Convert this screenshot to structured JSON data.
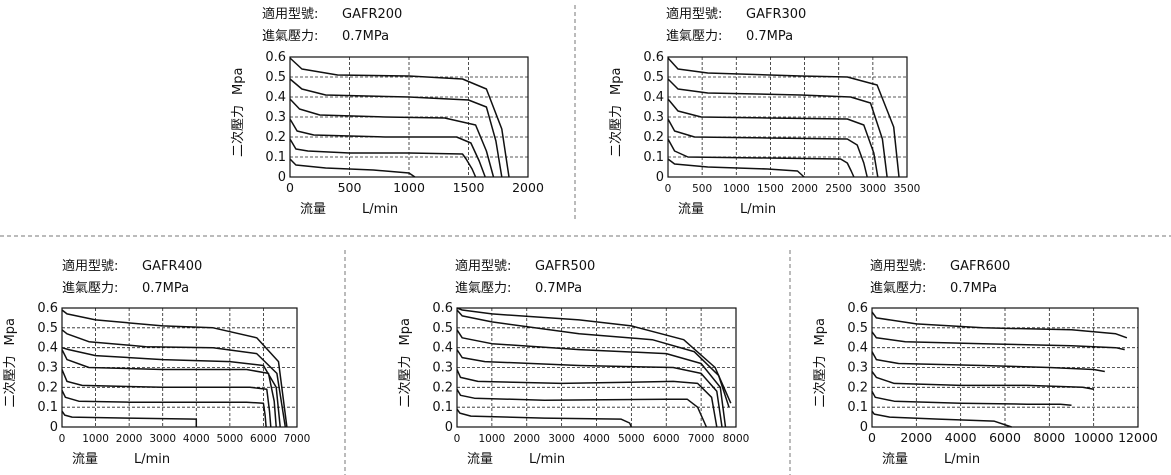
{
  "chart_data": [
    {
      "type": "line",
      "model_label": "適用型號:",
      "model": "GAFR200",
      "pressure_label": "進氣壓力:",
      "pressure": "0.7MPa",
      "ylabel_cn": "二次壓力",
      "ylabel_unit": "Mpa",
      "xlabel_cn": "流量",
      "xlabel_unit": "L/min",
      "xlim": [
        0,
        2000
      ],
      "ylim": [
        0,
        0.6
      ],
      "x_ticks": [
        "0",
        "500",
        "1000",
        "1500",
        "2000"
      ],
      "y_ticks": [
        "0",
        "0.1",
        "0.2",
        "0.3",
        "0.4",
        "0.5",
        "0.6"
      ],
      "series": [
        {
          "x": [
            0,
            50,
            300,
            700,
            1000,
            1050
          ],
          "y": [
            0.09,
            0.06,
            0.045,
            0.035,
            0.02,
            0.0
          ]
        },
        {
          "x": [
            0,
            50,
            150,
            500,
            1000,
            1450,
            1480,
            1530,
            1560
          ],
          "y": [
            0.19,
            0.14,
            0.13,
            0.12,
            0.12,
            0.115,
            0.09,
            0.04,
            0.0
          ]
        },
        {
          "x": [
            0,
            60,
            200,
            800,
            1400,
            1520,
            1590,
            1640
          ],
          "y": [
            0.29,
            0.23,
            0.21,
            0.2,
            0.2,
            0.17,
            0.08,
            0.0
          ]
        },
        {
          "x": [
            0,
            80,
            250,
            800,
            1300,
            1560,
            1650,
            1710
          ],
          "y": [
            0.39,
            0.34,
            0.31,
            0.3,
            0.295,
            0.26,
            0.13,
            0.0
          ]
        },
        {
          "x": [
            0,
            100,
            300,
            1000,
            1500,
            1650,
            1730,
            1780
          ],
          "y": [
            0.49,
            0.44,
            0.41,
            0.4,
            0.385,
            0.35,
            0.18,
            0.0
          ]
        },
        {
          "x": [
            0,
            100,
            400,
            1000,
            1450,
            1650,
            1780,
            1840
          ],
          "y": [
            0.595,
            0.54,
            0.51,
            0.505,
            0.49,
            0.44,
            0.24,
            0.0
          ]
        }
      ]
    },
    {
      "type": "line",
      "model_label": "適用型號:",
      "model": "GAFR300",
      "pressure_label": "進氣壓力:",
      "pressure": "0.7MPa",
      "ylabel_cn": "二次壓力",
      "ylabel_unit": "Mpa",
      "xlabel_cn": "流量",
      "xlabel_unit": "L/min",
      "xlim": [
        0,
        3600
      ],
      "ylim": [
        0,
        0.6
      ],
      "x_ticks": [
        "0",
        "500",
        "1000",
        "1500",
        "2000",
        "2500",
        "3000",
        "3500"
      ],
      "y_ticks": [
        "0",
        "0.1",
        "0.2",
        "0.3",
        "0.4",
        "0.5",
        "0.6"
      ],
      "series": [
        {
          "x": [
            0,
            100,
            600,
            1500,
            1950,
            2050
          ],
          "y": [
            0.09,
            0.065,
            0.05,
            0.04,
            0.03,
            0.0
          ]
        },
        {
          "x": [
            0,
            100,
            300,
            1500,
            2600,
            2700,
            2760,
            2800
          ],
          "y": [
            0.19,
            0.13,
            0.1,
            0.095,
            0.09,
            0.07,
            0.03,
            0.0
          ]
        },
        {
          "x": [
            0,
            100,
            400,
            1500,
            2700,
            2850,
            2950,
            3000
          ],
          "y": [
            0.29,
            0.23,
            0.2,
            0.195,
            0.19,
            0.16,
            0.07,
            0.0
          ]
        },
        {
          "x": [
            0,
            150,
            500,
            1500,
            2700,
            2950,
            3100,
            3160
          ],
          "y": [
            0.39,
            0.33,
            0.3,
            0.295,
            0.29,
            0.26,
            0.12,
            0.0
          ]
        },
        {
          "x": [
            0,
            150,
            600,
            2000,
            2750,
            3050,
            3230,
            3300
          ],
          "y": [
            0.49,
            0.44,
            0.42,
            0.41,
            0.4,
            0.37,
            0.19,
            0.0
          ]
        },
        {
          "x": [
            0,
            150,
            600,
            2000,
            2700,
            3150,
            3400,
            3480
          ],
          "y": [
            0.595,
            0.54,
            0.52,
            0.505,
            0.5,
            0.46,
            0.25,
            0.0
          ]
        }
      ]
    },
    {
      "type": "line",
      "model_label": "適用型號:",
      "model": "GAFR400",
      "pressure_label": "進氣壓力:",
      "pressure": "0.7MPa",
      "ylabel_cn": "二次壓力",
      "ylabel_unit": "Mpa",
      "xlabel_cn": "流量",
      "xlabel_unit": "L/min",
      "xlim": [
        0,
        7000
      ],
      "ylim": [
        0,
        0.6
      ],
      "x_ticks": [
        "0",
        "1000",
        "2000",
        "3000",
        "4000",
        "5000",
        "6000",
        "7000"
      ],
      "y_ticks": [
        "0",
        "0.1",
        "0.2",
        "0.3",
        "0.4",
        "0.5",
        "0.6"
      ],
      "series": [
        {
          "x": [
            0,
            80,
            300,
            2000,
            4000,
            4000
          ],
          "y": [
            0.08,
            0.06,
            0.05,
            0.045,
            0.04,
            0.0
          ]
        },
        {
          "x": [
            0,
            100,
            500,
            2000,
            5500,
            6000,
            6050,
            6080
          ],
          "y": [
            0.185,
            0.15,
            0.13,
            0.125,
            0.125,
            0.12,
            0.06,
            0.0
          ]
        },
        {
          "x": [
            0,
            150,
            600,
            3000,
            5600,
            6100,
            6180,
            6220
          ],
          "y": [
            0.29,
            0.23,
            0.21,
            0.2,
            0.2,
            0.19,
            0.08,
            0.0
          ]
        },
        {
          "x": [
            0,
            150,
            800,
            3000,
            5500,
            6150,
            6320,
            6380
          ],
          "y": [
            0.39,
            0.34,
            0.3,
            0.29,
            0.29,
            0.27,
            0.13,
            0.0
          ]
        },
        {
          "x": [
            0,
            200,
            1000,
            3000,
            5000,
            6000,
            6380,
            6500
          ],
          "y": [
            0.4,
            0.39,
            0.36,
            0.34,
            0.33,
            0.31,
            0.2,
            0.0
          ]
        },
        {
          "x": [
            0,
            150,
            800,
            2500,
            4500,
            5800,
            6400,
            6650
          ],
          "y": [
            0.49,
            0.47,
            0.43,
            0.405,
            0.4,
            0.37,
            0.27,
            0.0
          ]
        },
        {
          "x": [
            0,
            150,
            1000,
            3000,
            4500,
            5800,
            6450,
            6700
          ],
          "y": [
            0.59,
            0.57,
            0.54,
            0.51,
            0.5,
            0.45,
            0.33,
            0.0
          ]
        }
      ]
    },
    {
      "type": "line",
      "model_label": "適用型號:",
      "model": "GAFR500",
      "pressure_label": "進氣壓力:",
      "pressure": "0.7MPa",
      "ylabel_cn": "二次壓力",
      "ylabel_unit": "Mpa",
      "xlabel_cn": "流量",
      "xlabel_unit": "L/min",
      "xlim": [
        0,
        8000
      ],
      "ylim": [
        0,
        0.6
      ],
      "x_ticks": [
        "0",
        "1000",
        "2000",
        "3000",
        "4000",
        "5000",
        "6000",
        "7000",
        "8000"
      ],
      "y_ticks": [
        "0",
        "0.1",
        "0.2",
        "0.3",
        "0.4",
        "0.5",
        "0.6"
      ],
      "series": [
        {
          "x": [
            0,
            80,
            400,
            2500,
            4700,
            4950,
            5000
          ],
          "y": [
            0.09,
            0.07,
            0.055,
            0.045,
            0.04,
            0.02,
            0.0
          ]
        },
        {
          "x": [
            0,
            100,
            500,
            2500,
            6000,
            6600,
            6900,
            7150
          ],
          "y": [
            0.19,
            0.16,
            0.145,
            0.135,
            0.14,
            0.14,
            0.1,
            0.0
          ]
        },
        {
          "x": [
            0,
            100,
            600,
            3000,
            6200,
            6900,
            7300,
            7450
          ],
          "y": [
            0.29,
            0.25,
            0.23,
            0.22,
            0.23,
            0.22,
            0.15,
            0.0
          ]
        },
        {
          "x": [
            0,
            150,
            800,
            3500,
            6200,
            7000,
            7450,
            7600
          ],
          "y": [
            0.39,
            0.35,
            0.33,
            0.31,
            0.3,
            0.27,
            0.18,
            0.0
          ]
        },
        {
          "x": [
            0,
            150,
            1000,
            3500,
            6000,
            7000,
            7550,
            7700
          ],
          "y": [
            0.49,
            0.45,
            0.42,
            0.39,
            0.37,
            0.32,
            0.2,
            0.0
          ]
        },
        {
          "x": [
            0,
            150,
            1000,
            3500,
            5600,
            6800,
            7500,
            7800
          ],
          "y": [
            0.59,
            0.56,
            0.53,
            0.47,
            0.44,
            0.38,
            0.26,
            0.1
          ]
        },
        {
          "x": [
            0,
            150,
            1000,
            3500,
            5000,
            6500,
            7400,
            7850
          ],
          "y": [
            0.6,
            0.59,
            0.57,
            0.54,
            0.51,
            0.44,
            0.3,
            0.12
          ]
        }
      ]
    },
    {
      "type": "line",
      "model_label": "適用型號:",
      "model": "GAFR600",
      "pressure_label": "進氣壓力:",
      "pressure": "0.7MPa",
      "ylabel_cn": "二次壓力",
      "ylabel_unit": "Mpa",
      "xlabel_cn": "流量",
      "xlabel_unit": "L/min",
      "xlim": [
        0,
        12000
      ],
      "ylim": [
        0,
        0.6
      ],
      "x_ticks": [
        "0",
        "2000",
        "4000",
        "6000",
        "8000",
        "10000",
        "12000"
      ],
      "y_ticks": [
        "0",
        "0.1",
        "0.2",
        "0.3",
        "0.4",
        "0.5",
        "0.6"
      ],
      "series": [
        {
          "x": [
            0,
            100,
            800,
            3000,
            5500,
            6300
          ],
          "y": [
            0.08,
            0.065,
            0.05,
            0.04,
            0.03,
            0.0
          ]
        },
        {
          "x": [
            0,
            150,
            1000,
            4000,
            7000,
            8500,
            9000
          ],
          "y": [
            0.18,
            0.15,
            0.13,
            0.12,
            0.115,
            0.115,
            0.11
          ]
        },
        {
          "x": [
            0,
            200,
            1000,
            4000,
            7000,
            9500,
            10000
          ],
          "y": [
            0.28,
            0.25,
            0.22,
            0.21,
            0.21,
            0.2,
            0.19
          ]
        },
        {
          "x": [
            0,
            200,
            1200,
            5000,
            8000,
            10000,
            10500
          ],
          "y": [
            0.38,
            0.34,
            0.32,
            0.31,
            0.3,
            0.29,
            0.28
          ]
        },
        {
          "x": [
            0,
            200,
            1500,
            5000,
            9000,
            11000,
            11400
          ],
          "y": [
            0.48,
            0.45,
            0.43,
            0.42,
            0.41,
            0.4,
            0.39
          ]
        },
        {
          "x": [
            0,
            200,
            2000,
            5000,
            9000,
            11000,
            11500
          ],
          "y": [
            0.58,
            0.55,
            0.52,
            0.5,
            0.49,
            0.47,
            0.45
          ]
        }
      ]
    }
  ]
}
